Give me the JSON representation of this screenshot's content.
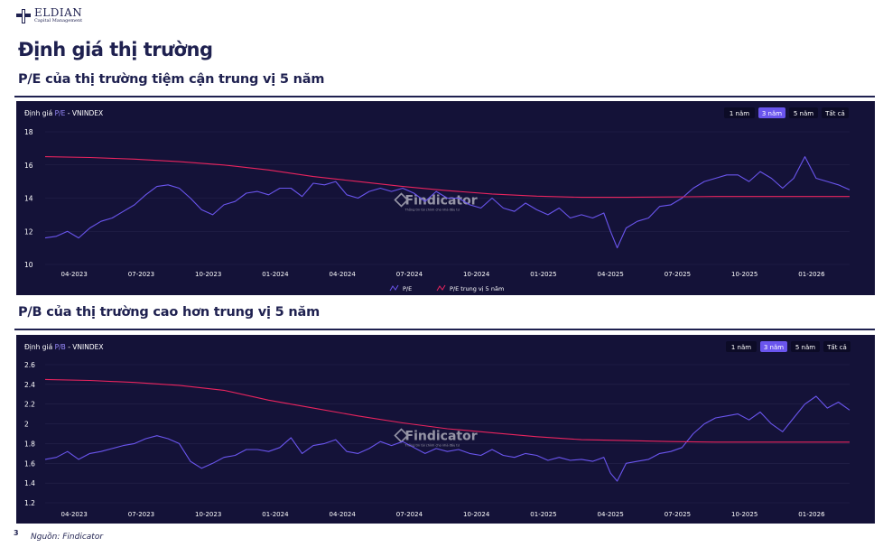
{
  "header": {
    "brand": "ELDIAN",
    "brand_sub": "Capital Management",
    "page_title": "Định giá thị trường"
  },
  "sections": [
    {
      "title": "P/E của thị trường tiệm cận trung vị 5 năm"
    },
    {
      "title": "P/B của thị trường cao hơn trung vị 5 năm"
    }
  ],
  "colors": {
    "panel_bg": "#141238",
    "series_main": "#6a55ee",
    "series_median": "#e8245e",
    "accent": "#1f2150"
  },
  "footer": {
    "page_number": "3",
    "source": "Nguồn: Findicator"
  },
  "chart_data": [
    {
      "type": "line",
      "panel_label_prefix": "Định giá",
      "metric": "P/E",
      "panel_label_suffix": "- VNINDEX",
      "range_buttons": [
        "1 năm",
        "3 năm",
        "5 năm",
        "Tất cả"
      ],
      "active_range": "3 năm",
      "watermark": "Findicator",
      "watermark_sub": "Thông tin tài chính cho nhà đầu tư",
      "ylim": [
        10,
        18
      ],
      "yticks": [
        10,
        12,
        14,
        16,
        18
      ],
      "x_range": [
        0,
        36
      ],
      "xticks": [
        {
          "x": 1.3,
          "label": "04-2023"
        },
        {
          "x": 4.3,
          "label": "07-2023"
        },
        {
          "x": 7.3,
          "label": "10-2023"
        },
        {
          "x": 10.3,
          "label": "01-2024"
        },
        {
          "x": 13.3,
          "label": "04-2024"
        },
        {
          "x": 16.3,
          "label": "07-2024"
        },
        {
          "x": 19.3,
          "label": "10-2024"
        },
        {
          "x": 22.3,
          "label": "01-2025"
        },
        {
          "x": 25.3,
          "label": "04-2025"
        },
        {
          "x": 28.3,
          "label": "07-2025"
        },
        {
          "x": 31.3,
          "label": "10-2025"
        },
        {
          "x": 34.3,
          "label": "01-2026"
        }
      ],
      "legend": [
        "P/E",
        "P/E trung vị 5 năm"
      ],
      "series": [
        {
          "name": "P/E",
          "color": "#6a55ee",
          "x": [
            0,
            0.5,
            1,
            1.5,
            2,
            2.5,
            3,
            3.5,
            4,
            4.5,
            5,
            5.5,
            6,
            6.5,
            7,
            7.5,
            8,
            8.5,
            9,
            9.5,
            10,
            10.5,
            11,
            11.5,
            12,
            12.5,
            13,
            13.5,
            14,
            14.5,
            15,
            15.5,
            16,
            16.5,
            17,
            17.5,
            18,
            18.5,
            19,
            19.5,
            20,
            20.5,
            21,
            21.5,
            22,
            22.5,
            23,
            23.5,
            24,
            24.5,
            25,
            25.3,
            25.6,
            26,
            26.5,
            27,
            27.5,
            28,
            28.5,
            29,
            29.5,
            30,
            30.5,
            31,
            31.5,
            32,
            32.5,
            33,
            33.5,
            34,
            34.5,
            35,
            35.5,
            36
          ],
          "y": [
            11.6,
            11.7,
            12.0,
            11.6,
            12.2,
            12.6,
            12.8,
            13.2,
            13.6,
            14.2,
            14.7,
            14.8,
            14.6,
            14.0,
            13.3,
            13.0,
            13.6,
            13.8,
            14.3,
            14.4,
            14.2,
            14.6,
            14.6,
            14.1,
            14.9,
            14.8,
            15.0,
            14.2,
            14.0,
            14.4,
            14.6,
            14.4,
            14.6,
            14.3,
            13.8,
            14.4,
            14.0,
            14.0,
            13.6,
            13.4,
            14.0,
            13.4,
            13.2,
            13.7,
            13.3,
            13.0,
            13.4,
            12.8,
            13.0,
            12.8,
            13.1,
            12.0,
            11.0,
            12.2,
            12.6,
            12.8,
            13.5,
            13.6,
            14.0,
            14.6,
            15.0,
            15.2,
            15.4,
            15.4,
            15.0,
            15.6,
            15.2,
            14.6,
            15.2,
            16.5,
            15.2,
            15.0,
            14.8,
            14.5
          ]
        },
        {
          "name": "P/E trung vị 5 năm",
          "color": "#e8245e",
          "x": [
            0,
            2,
            4,
            6,
            8,
            10,
            12,
            14,
            16,
            18,
            20,
            22,
            24,
            26,
            28,
            30,
            32,
            34,
            36
          ],
          "y": [
            16.5,
            16.45,
            16.35,
            16.2,
            16.0,
            15.7,
            15.3,
            15.0,
            14.7,
            14.45,
            14.25,
            14.12,
            14.05,
            14.05,
            14.07,
            14.1,
            14.1,
            14.1,
            14.1
          ]
        }
      ]
    },
    {
      "type": "line",
      "panel_label_prefix": "Định giá",
      "metric": "P/B",
      "panel_label_suffix": "- VNINDEX",
      "range_buttons": [
        "1 năm",
        "3 năm",
        "5 năm",
        "Tất cả"
      ],
      "active_range": "3 năm",
      "watermark": "Findicator",
      "watermark_sub": "Thông tin tài chính cho nhà đầu tư",
      "ylim": [
        1.2,
        2.6
      ],
      "yticks": [
        1.2,
        1.4,
        1.6,
        1.8,
        2,
        2.2,
        2.4,
        2.6
      ],
      "x_range": [
        0,
        36
      ],
      "xticks": [
        {
          "x": 1.3,
          "label": "04-2023"
        },
        {
          "x": 4.3,
          "label": "07-2023"
        },
        {
          "x": 7.3,
          "label": "10-2023"
        },
        {
          "x": 10.3,
          "label": "01-2024"
        },
        {
          "x": 13.3,
          "label": "04-2024"
        },
        {
          "x": 16.3,
          "label": "07-2024"
        },
        {
          "x": 19.3,
          "label": "10-2024"
        },
        {
          "x": 22.3,
          "label": "01-2025"
        },
        {
          "x": 25.3,
          "label": "04-2025"
        },
        {
          "x": 28.3,
          "label": "07-2025"
        },
        {
          "x": 31.3,
          "label": "10-2025"
        },
        {
          "x": 34.3,
          "label": "01-2026"
        }
      ],
      "legend": [],
      "series": [
        {
          "name": "P/B",
          "color": "#6a55ee",
          "x": [
            0,
            0.5,
            1,
            1.5,
            2,
            2.5,
            3,
            3.5,
            4,
            4.5,
            5,
            5.5,
            6,
            6.5,
            7,
            7.5,
            8,
            8.5,
            9,
            9.5,
            10,
            10.5,
            11,
            11.5,
            12,
            12.5,
            13,
            13.5,
            14,
            14.5,
            15,
            15.5,
            16,
            16.5,
            17,
            17.5,
            18,
            18.5,
            19,
            19.5,
            20,
            20.5,
            21,
            21.5,
            22,
            22.5,
            23,
            23.5,
            24,
            24.5,
            25,
            25.3,
            25.6,
            26,
            26.5,
            27,
            27.5,
            28,
            28.5,
            29,
            29.5,
            30,
            30.5,
            31,
            31.5,
            32,
            32.5,
            33,
            33.5,
            34,
            34.5,
            35,
            35.5,
            36
          ],
          "y": [
            1.64,
            1.66,
            1.72,
            1.64,
            1.7,
            1.72,
            1.75,
            1.78,
            1.8,
            1.85,
            1.88,
            1.85,
            1.8,
            1.62,
            1.55,
            1.6,
            1.66,
            1.68,
            1.74,
            1.74,
            1.72,
            1.76,
            1.86,
            1.7,
            1.78,
            1.8,
            1.84,
            1.72,
            1.7,
            1.75,
            1.82,
            1.78,
            1.82,
            1.76,
            1.7,
            1.75,
            1.72,
            1.74,
            1.7,
            1.68,
            1.74,
            1.68,
            1.66,
            1.7,
            1.68,
            1.63,
            1.66,
            1.63,
            1.64,
            1.62,
            1.66,
            1.5,
            1.42,
            1.6,
            1.62,
            1.64,
            1.7,
            1.72,
            1.76,
            1.9,
            2.0,
            2.06,
            2.08,
            2.1,
            2.04,
            2.12,
            2.0,
            1.92,
            2.06,
            2.2,
            2.28,
            2.16,
            2.22,
            2.14
          ]
        },
        {
          "name": "",
          "color": "#e8245e",
          "x": [
            0,
            2,
            4,
            6,
            8,
            10,
            12,
            14,
            16,
            18,
            20,
            22,
            24,
            26,
            28,
            30,
            32,
            34,
            36
          ],
          "y": [
            2.45,
            2.44,
            2.42,
            2.39,
            2.34,
            2.24,
            2.16,
            2.08,
            2.01,
            1.95,
            1.91,
            1.87,
            1.84,
            1.83,
            1.82,
            1.815,
            1.815,
            1.815,
            1.815
          ]
        }
      ]
    }
  ]
}
